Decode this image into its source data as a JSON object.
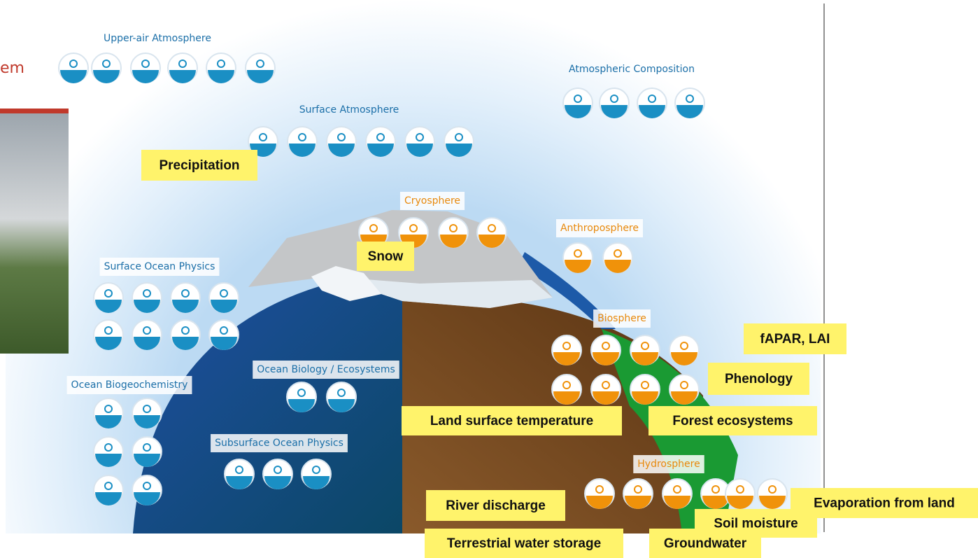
{
  "header_fragment": "em",
  "sections": [
    {
      "label": "Upper-air Atmosphere"
    },
    {
      "label": "Atmospheric Composition"
    },
    {
      "label": "Surface Atmosphere"
    },
    {
      "label": "Surface Ocean Physics"
    },
    {
      "label": "Ocean Biology / Ecosystems"
    },
    {
      "label": "Ocean Biogeochemistry"
    },
    {
      "label": "Subsurface Ocean Physics"
    },
    {
      "label": "Cryosphere"
    },
    {
      "label": "Anthroposphere"
    },
    {
      "label": "Biosphere"
    },
    {
      "label": "Hydrosphere"
    }
  ],
  "callouts": [
    {
      "label": "Precipitation"
    },
    {
      "label": "Snow"
    },
    {
      "label": "fAPAR, LAI"
    },
    {
      "label": "Phenology"
    },
    {
      "label": "Land surface temperature"
    },
    {
      "label": "Forest ecosystems"
    },
    {
      "label": "River discharge"
    },
    {
      "label": "Evaporation from land"
    },
    {
      "label": "Soil moisture"
    },
    {
      "label": "Terrestrial water storage"
    },
    {
      "label": "Groundwater"
    }
  ]
}
